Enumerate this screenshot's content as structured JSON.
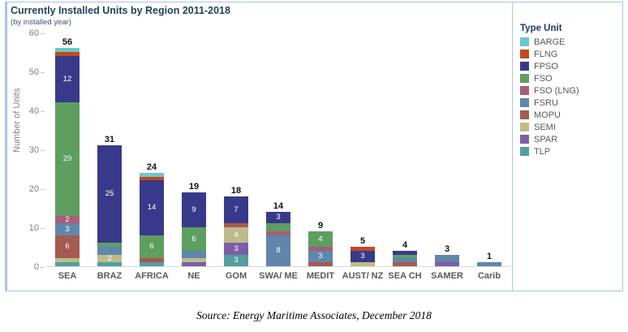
{
  "chart": {
    "title": "Currently Installed Units by Region 2011-2018",
    "subtitle": "(by installed year)",
    "y_axis_label": "Number of Units",
    "legend_title": "Type Unit",
    "source": "Source: Energy Maritime Associates, December 2018"
  },
  "colors": {
    "frame": "#a9c5e8",
    "title_text": "#1f4257",
    "axis_text": "#7f7f7f",
    "category_text": "#595959"
  },
  "chart_data": {
    "type": "bar",
    "stacked": true,
    "title": "Currently Installed Units by Region 2011-2018",
    "subtitle": "(by installed year)",
    "ylabel": "Number of Units",
    "xlabel": "",
    "ylim": [
      0,
      60
    ],
    "y_ticks": [
      0,
      10,
      20,
      30,
      40,
      50,
      60
    ],
    "grid": false,
    "legend_title": "Type Unit",
    "legend_position": "right",
    "legend_entries": [
      "BARGE",
      "FLNG",
      "FPSO",
      "FSO",
      "FSO (LNG)",
      "FSRU",
      "MOPU",
      "SEMI",
      "SPAR",
      "TLP"
    ],
    "types": [
      {
        "name": "BARGE",
        "color": "#6cc8c8"
      },
      {
        "name": "FLNG",
        "color": "#c2491f"
      },
      {
        "name": "FPSO",
        "color": "#39398c"
      },
      {
        "name": "FSO",
        "color": "#5e9e60"
      },
      {
        "name": "FSO (LNG)",
        "color": "#a85d7c"
      },
      {
        "name": "FSRU",
        "color": "#6086ab"
      },
      {
        "name": "MOPU",
        "color": "#a55a50"
      },
      {
        "name": "SEMI",
        "color": "#bcbc8a"
      },
      {
        "name": "SPAR",
        "color": "#7b5ea7"
      },
      {
        "name": "TLP",
        "color": "#539f9f"
      }
    ],
    "categories": [
      "SEA",
      "BRAZ",
      "AFRICA",
      "NE",
      "GOM",
      "SWA/ ME",
      "MEDIT",
      "AUST/ NZ",
      "SEA CH",
      "SAMER",
      "Carib"
    ],
    "totals": [
      56,
      31,
      24,
      19,
      18,
      14,
      9,
      5,
      4,
      3,
      1
    ],
    "bars": [
      {
        "category": "SEA",
        "total": 56,
        "segments_bottom_to_top": [
          {
            "type": "TLP",
            "value": 1,
            "show_label": false
          },
          {
            "type": "SEMI",
            "value": 1,
            "show_label": false
          },
          {
            "type": "MOPU",
            "value": 6,
            "show_label": true
          },
          {
            "type": "FSRU",
            "value": 3,
            "show_label": true
          },
          {
            "type": "FSO (LNG)",
            "value": 2,
            "show_label": true
          },
          {
            "type": "FSO",
            "value": 29,
            "show_label": true
          },
          {
            "type": "FPSO",
            "value": 12,
            "show_label": true
          },
          {
            "type": "FLNG",
            "value": 1,
            "show_label": false
          },
          {
            "type": "BARGE",
            "value": 1,
            "show_label": false
          }
        ]
      },
      {
        "category": "BRAZ",
        "total": 31,
        "segments_bottom_to_top": [
          {
            "type": "TLP",
            "value": 1,
            "show_label": false
          },
          {
            "type": "SEMI",
            "value": 2,
            "show_label": true
          },
          {
            "type": "FSRU",
            "value": 2,
            "show_label": false
          },
          {
            "type": "FSO",
            "value": 1,
            "show_label": false
          },
          {
            "type": "FPSO",
            "value": 25,
            "show_label": true
          }
        ]
      },
      {
        "category": "AFRICA",
        "total": 24,
        "segments_bottom_to_top": [
          {
            "type": "TLP",
            "value": 1,
            "show_label": false
          },
          {
            "type": "MOPU",
            "value": 1,
            "show_label": false
          },
          {
            "type": "FSO",
            "value": 6,
            "show_label": true
          },
          {
            "type": "FPSO",
            "value": 14,
            "show_label": true
          },
          {
            "type": "FLNG",
            "value": 1,
            "show_label": false
          },
          {
            "type": "BARGE",
            "value": 1,
            "show_label": false
          }
        ]
      },
      {
        "category": "NE",
        "total": 19,
        "segments_bottom_to_top": [
          {
            "type": "SPAR",
            "value": 1,
            "show_label": false
          },
          {
            "type": "SEMI",
            "value": 1,
            "show_label": false
          },
          {
            "type": "FSRU",
            "value": 2,
            "show_label": false
          },
          {
            "type": "FSO",
            "value": 6,
            "show_label": true
          },
          {
            "type": "FPSO",
            "value": 9,
            "show_label": true
          }
        ]
      },
      {
        "category": "GOM",
        "total": 18,
        "segments_bottom_to_top": [
          {
            "type": "TLP",
            "value": 3,
            "show_label": true
          },
          {
            "type": "SPAR",
            "value": 3,
            "show_label": true
          },
          {
            "type": "SEMI",
            "value": 4,
            "show_label": true
          },
          {
            "type": "MOPU",
            "value": 1,
            "show_label": false
          },
          {
            "type": "FPSO",
            "value": 7,
            "show_label": true
          }
        ]
      },
      {
        "category": "SWA/ ME",
        "total": 14,
        "segments_bottom_to_top": [
          {
            "type": "FSRU",
            "value": 8,
            "show_label": true
          },
          {
            "type": "FSO (LNG)",
            "value": 1,
            "show_label": false
          },
          {
            "type": "FSO",
            "value": 2,
            "show_label": false
          },
          {
            "type": "FPSO",
            "value": 3,
            "show_label": true
          }
        ]
      },
      {
        "category": "MEDIT",
        "total": 9,
        "segments_bottom_to_top": [
          {
            "type": "MOPU",
            "value": 1,
            "show_label": false
          },
          {
            "type": "FSRU",
            "value": 3,
            "show_label": true
          },
          {
            "type": "FSO (LNG)",
            "value": 1,
            "show_label": false
          },
          {
            "type": "FSO",
            "value": 4,
            "show_label": true
          }
        ]
      },
      {
        "category": "AUST/ NZ",
        "total": 5,
        "segments_bottom_to_top": [
          {
            "type": "SEMI",
            "value": 1,
            "show_label": false
          },
          {
            "type": "FPSO",
            "value": 3,
            "show_label": true
          },
          {
            "type": "FLNG",
            "value": 1,
            "show_label": false
          }
        ]
      },
      {
        "category": "SEA CH",
        "total": 4,
        "segments_bottom_to_top": [
          {
            "type": "MOPU",
            "value": 1,
            "show_label": false
          },
          {
            "type": "FSRU",
            "value": 1,
            "show_label": false
          },
          {
            "type": "FSO",
            "value": 1,
            "show_label": false
          },
          {
            "type": "FPSO",
            "value": 1,
            "show_label": false
          }
        ]
      },
      {
        "category": "SAMER",
        "total": 3,
        "segments_bottom_to_top": [
          {
            "type": "SPAR",
            "value": 1,
            "show_label": false
          },
          {
            "type": "FSRU",
            "value": 2,
            "show_label": false
          }
        ]
      },
      {
        "category": "Carib",
        "total": 1,
        "segments_bottom_to_top": [
          {
            "type": "FSRU",
            "value": 1,
            "show_label": false
          }
        ]
      }
    ]
  }
}
